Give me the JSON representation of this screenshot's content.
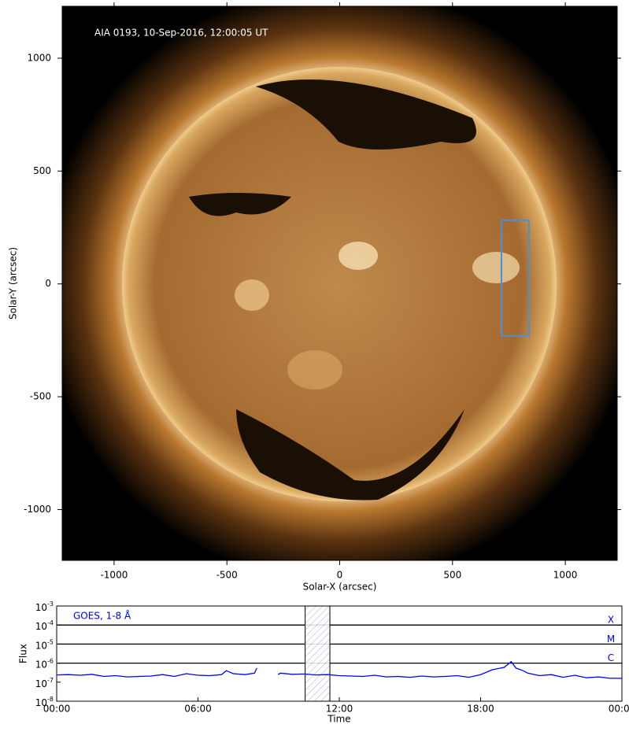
{
  "chart_data": [
    {
      "type": "image",
      "annotation": "AIA 0193, 10-Sep-2016, 12:00:05 UT",
      "x_label": "Solar-X (arcsec)",
      "y_label": "Solar-Y (arcsec)",
      "xlim": [
        -1230,
        1230
      ],
      "ylim": [
        -1225,
        1230
      ],
      "xticks": [
        -1000,
        -500,
        0,
        500,
        1000
      ],
      "yticks": [
        -1000,
        -500,
        0,
        500,
        1000
      ],
      "box": {
        "x": [
          717,
          839
        ],
        "y": [
          -230,
          282
        ],
        "color": "#4a90d9"
      }
    },
    {
      "type": "line",
      "annotation": "GOES, 1-8 Å",
      "x_label": "Time",
      "y_label": "Flux",
      "log_y": true,
      "xlim": [
        0,
        24
      ],
      "ylim": [
        1e-08,
        0.001
      ],
      "xticks": [
        {
          "value": 0,
          "label": "00:00"
        },
        {
          "value": 6,
          "label": "06:00"
        },
        {
          "value": 12,
          "label": "12:00"
        },
        {
          "value": 18,
          "label": "18:00"
        },
        {
          "value": 24,
          "label": "00:00"
        }
      ],
      "yticks": [
        {
          "value": 1e-08,
          "label": "10",
          "exponent": "-8"
        },
        {
          "value": 1e-07,
          "label": "10",
          "exponent": "-7"
        },
        {
          "value": 1e-06,
          "label": "10",
          "exponent": "-6"
        },
        {
          "value": 1e-05,
          "label": "10",
          "exponent": "-5"
        },
        {
          "value": 0.0001,
          "label": "10",
          "exponent": "-4"
        },
        {
          "value": 0.001,
          "label": "10",
          "exponent": "-3"
        }
      ],
      "levels": [
        {
          "value": 0.0001,
          "label": "X"
        },
        {
          "value": 1e-05,
          "label": "M"
        },
        {
          "value": 1e-06,
          "label": "C"
        }
      ],
      "highlight": [
        10.55,
        11.6
      ],
      "series": [
        {
          "color": "#0000ff",
          "x": [
            0,
            0.5,
            1,
            1.5,
            2,
            2.5,
            3,
            3.5,
            4,
            4.5,
            5,
            5.5,
            6,
            6.5,
            7,
            7.2,
            7.5,
            8,
            8.4,
            8.5,
            8.9,
            9.4,
            9.5,
            10,
            10.5,
            11,
            11.5,
            12,
            12.5,
            13,
            13.5,
            14,
            14.5,
            15,
            15.5,
            16,
            16.5,
            17,
            17.5,
            18,
            18.5,
            19,
            19.3,
            19.5,
            19.8,
            20,
            20.5,
            21,
            21.5,
            22,
            22.5,
            23,
            23.5,
            24
          ],
          "values": [
            2.4e-07,
            2.5e-07,
            2.3e-07,
            2.6e-07,
            2e-07,
            2.2e-07,
            1.9e-07,
            2e-07,
            2.1e-07,
            2.5e-07,
            2e-07,
            2.8e-07,
            2.3e-07,
            2.2e-07,
            2.5e-07,
            4e-07,
            2.8e-07,
            2.5e-07,
            3e-07,
            5.5e-07,
            null,
            2.5e-07,
            3e-07,
            2.6e-07,
            2.7e-07,
            2.4e-07,
            2.5e-07,
            2.2e-07,
            2.1e-07,
            2e-07,
            2.3e-07,
            1.9e-07,
            2e-07,
            1.8e-07,
            2.1e-07,
            1.9e-07,
            2e-07,
            2.2e-07,
            1.8e-07,
            2.5e-07,
            4.5e-07,
            6e-07,
            1.2e-06,
            5.5e-07,
            4e-07,
            3e-07,
            2.2e-07,
            2.5e-07,
            1.8e-07,
            2.3e-07,
            1.7e-07,
            1.9e-07,
            1.6e-07,
            1.6e-07
          ]
        }
      ]
    }
  ]
}
